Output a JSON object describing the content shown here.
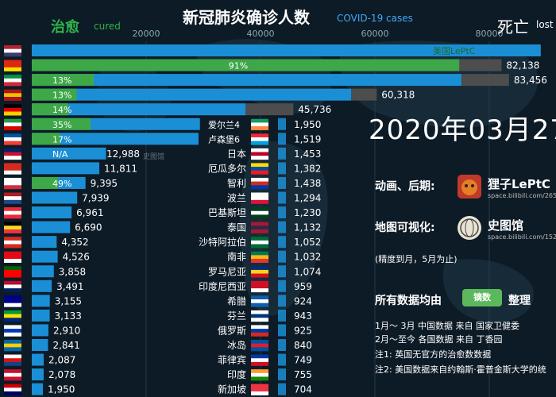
{
  "header": {
    "title": "新冠肺炎确诊人数",
    "subtitle": "COVID-19 cases",
    "cured_label_cn": "治愈",
    "cured_label_en": "cured",
    "death_label_cn": "死亡",
    "death_label_en": "lost"
  },
  "date": "2020年03月27",
  "credits": {
    "animation_label": "动画、后期:",
    "animation_author": "狸子LePtC",
    "animation_url": "space.bilibili.com/265",
    "map_label": "地图可视化:",
    "map_author": "史图馆",
    "map_url": "space.bilibili.com/152",
    "precision_note": "(精度到月，5月为止)",
    "data_source_label": "所有数据均由",
    "data_source_brand": "镝数",
    "data_source_suffix": "整理",
    "note_line1": "1月～ 3月  中国数据  来自  国家卫健委",
    "note_line2": "2月～至今  各国数据  来自  丁香园",
    "note_line3": "注1: 英国无官方的治愈数数据",
    "note_line4": "注2: 美国数据来自约翰斯·霍普金斯大学的统"
  },
  "watermark": "史图馆",
  "colors": {
    "background": "#0d1b26",
    "confirmed": "#1b8fd6",
    "cured": "#3ea748",
    "dead": "#4d4d4d",
    "title": "#ffffff",
    "accent": "#3fa9f5"
  },
  "chart_data": [
    {
      "type": "bar",
      "title": "新冠肺炎确诊人数",
      "subtitle": "COVID-19 cases",
      "orientation": "horizontal",
      "xlim": [
        0,
        90000
      ],
      "x_ticks": [
        20000,
        40000,
        60000,
        80000
      ],
      "x_tick_labels": [
        "20000",
        "40000",
        "60000",
        "80000"
      ],
      "rows": [
        {
          "country": "United States",
          "flag": "us",
          "confirmed": 89000,
          "label": "",
          "cured_pct": "",
          "inline_label": "美国LePtC"
        },
        {
          "country": "China",
          "flag": "cn",
          "confirmed": 82138,
          "label": "82,138",
          "cured_pct": "91%",
          "inline_label": ""
        },
        {
          "country": "Italy",
          "flag": "it",
          "confirmed": 83456,
          "label": "83,456",
          "cured_pct": "13%",
          "inline_label": ""
        },
        {
          "country": "Spain",
          "flag": "es",
          "confirmed": 60318,
          "label": "60,318",
          "cured_pct": "13%",
          "inline_label": ""
        },
        {
          "country": "Germany",
          "flag": "de",
          "confirmed": 45736,
          "label": "45,736",
          "cured_pct": "14%",
          "inline_label": ""
        },
        {
          "country": "Iran",
          "flag": "ir",
          "confirmed": 29406,
          "label": "",
          "cured_pct": "35%",
          "inline_label": "爱尔兰4"
        },
        {
          "country": "France",
          "flag": "fr",
          "confirmed": 29155,
          "label": "",
          "cured_pct": "17%",
          "inline_label": "卢森堡6"
        },
        {
          "country": "United Kingdom",
          "flag": "gb",
          "confirmed": 12988,
          "label": "12,988",
          "cured_pct": "N/A",
          "inline_label": ""
        },
        {
          "country": "Switzerland",
          "flag": "ch",
          "confirmed": 11811,
          "label": "11,811",
          "cured_pct": "",
          "inline_label": ""
        },
        {
          "country": "South Korea",
          "flag": "kr",
          "confirmed": 9395,
          "label": "9,395",
          "cured_pct": "49%",
          "inline_label": ""
        },
        {
          "country": "Netherlands",
          "flag": "nl",
          "confirmed": 7939,
          "label": "7,939",
          "cured_pct": "",
          "inline_label": ""
        },
        {
          "country": "Austria",
          "flag": "at",
          "confirmed": 6961,
          "label": "6,961",
          "cured_pct": "",
          "inline_label": ""
        },
        {
          "country": "Belgium",
          "flag": "be",
          "confirmed": 6690,
          "label": "6,690",
          "cured_pct": "",
          "inline_label": ""
        },
        {
          "country": "Canada",
          "flag": "ca",
          "confirmed": 4352,
          "label": "4,352",
          "cured_pct": "",
          "inline_label": ""
        },
        {
          "country": "Turkey",
          "flag": "tr",
          "confirmed": 4526,
          "label": "4,526",
          "cured_pct": "",
          "inline_label": ""
        },
        {
          "country": "Portugal",
          "flag": "pt",
          "confirmed": 3858,
          "label": "3,858",
          "cured_pct": "",
          "inline_label": ""
        },
        {
          "country": "Norway",
          "flag": "no",
          "confirmed": 3491,
          "label": "3,491",
          "cured_pct": "",
          "inline_label": ""
        },
        {
          "country": "Australia",
          "flag": "au",
          "confirmed": 3155,
          "label": "3,155",
          "cured_pct": "",
          "inline_label": ""
        },
        {
          "country": "Brazil",
          "flag": "br",
          "confirmed": 3133,
          "label": "3,133",
          "cured_pct": "",
          "inline_label": ""
        },
        {
          "country": "Israel",
          "flag": "il",
          "confirmed": 2910,
          "label": "2,910",
          "cured_pct": "",
          "inline_label": ""
        },
        {
          "country": "Sweden",
          "flag": "se",
          "confirmed": 2841,
          "label": "2,841",
          "cured_pct": "",
          "inline_label": ""
        },
        {
          "country": "Czechia",
          "flag": "cz",
          "confirmed": 2087,
          "label": "2,087",
          "cured_pct": "",
          "inline_label": ""
        },
        {
          "country": "Denmark",
          "flag": "dk",
          "confirmed": 2078,
          "label": "2,078",
          "cured_pct": "",
          "inline_label": ""
        },
        {
          "country": "Malaysia",
          "flag": "my",
          "confirmed": 1950,
          "label": "1,950",
          "cured_pct": "",
          "inline_label": ""
        }
      ]
    },
    {
      "type": "bar",
      "title": "",
      "orientation": "horizontal",
      "xlim": [
        0,
        2000
      ],
      "rows": [
        {
          "name": "爱尔兰",
          "flag": "ie",
          "value": 1950,
          "label": "1,950"
        },
        {
          "name": "卢森堡",
          "flag": "lu",
          "value": 1519,
          "label": "1,519"
        },
        {
          "name": "日本",
          "flag": "jp",
          "value": 1453,
          "label": "1,453"
        },
        {
          "name": "厄瓜多尔",
          "flag": "ec",
          "value": 1382,
          "label": "1,382"
        },
        {
          "name": "智利",
          "flag": "cl",
          "value": 1438,
          "label": "1,438"
        },
        {
          "name": "波兰",
          "flag": "pl",
          "value": 1294,
          "label": "1,294"
        },
        {
          "name": "巴基斯坦",
          "flag": "pk",
          "value": 1230,
          "label": "1,230"
        },
        {
          "name": "泰国",
          "flag": "th",
          "value": 1132,
          "label": "1,132"
        },
        {
          "name": "沙特阿拉伯",
          "flag": "sa",
          "value": 1052,
          "label": "1,052"
        },
        {
          "name": "南非",
          "flag": "za",
          "value": 1032,
          "label": "1,032"
        },
        {
          "name": "罗马尼亚",
          "flag": "ro",
          "value": 1074,
          "label": "1,074"
        },
        {
          "name": "印度尼西亚",
          "flag": "id",
          "value": 959,
          "label": "959"
        },
        {
          "name": "希腊",
          "flag": "gr",
          "value": 924,
          "label": "924"
        },
        {
          "name": "芬兰",
          "flag": "fi",
          "value": 943,
          "label": "943"
        },
        {
          "name": "俄罗斯",
          "flag": "ru",
          "value": 925,
          "label": "925"
        },
        {
          "name": "冰岛",
          "flag": "is",
          "value": 840,
          "label": "840"
        },
        {
          "name": "菲律宾",
          "flag": "ph",
          "value": 749,
          "label": "749"
        },
        {
          "name": "印度",
          "flag": "in",
          "value": 755,
          "label": "755"
        },
        {
          "name": "新加坡",
          "flag": "sg",
          "value": 704,
          "label": "704"
        }
      ]
    }
  ]
}
